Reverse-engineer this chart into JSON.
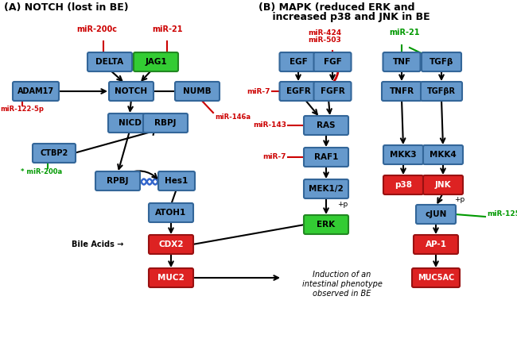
{
  "bg_color": "#ffffff",
  "blue": "#6699cc",
  "blue_e": "#336699",
  "green_fill": "#33cc33",
  "green_e": "#228822",
  "red_fill": "#dd2222",
  "red_e": "#991111",
  "red_t": "#cc0000",
  "green_t": "#009900",
  "title_a": "(A) NOTCH (lost in BE)",
  "title_b1": "(B) MAPK (reduced ERK and",
  "title_b2": "    increased p38 and JNK in BE"
}
